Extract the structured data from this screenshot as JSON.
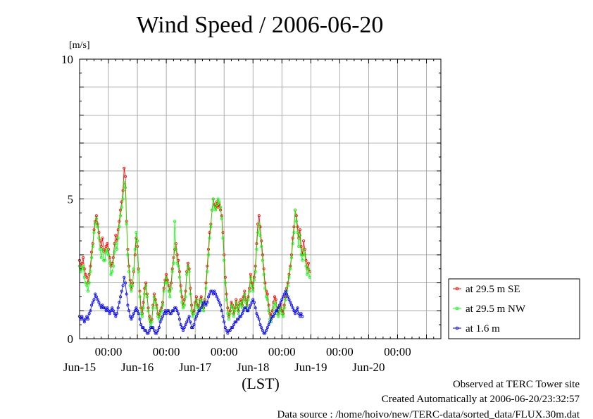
{
  "chart_data": {
    "type": "line",
    "title": "Wind Speed / 2006-06-20",
    "ylabel": "[m/s]",
    "xlabel": "(LST)",
    "ylim": [
      0,
      10
    ],
    "xlim": [
      "2006-06-14T12:00",
      "2006-06-20T18:00"
    ],
    "y_ticks": [
      "0",
      "5",
      "10"
    ],
    "y_tick_values": [
      0,
      5,
      10
    ],
    "x_day_ticks": [
      "00:00",
      "00:00",
      "00:00",
      "00:00",
      "00:00",
      "00:00"
    ],
    "x_day_tick_values": [
      "2006-06-15T00:00",
      "2006-06-16T00:00",
      "2006-06-17T00:00",
      "2006-06-18T00:00",
      "2006-06-19T00:00",
      "2006-06-20T00:00"
    ],
    "x_date_labels": [
      "Jun-15",
      "Jun-16",
      "Jun-17",
      "Jun-18",
      "Jun-19",
      "Jun-20"
    ],
    "x_date_label_values": [
      "2006-06-14T12:00",
      "2006-06-15T12:00",
      "2006-06-16T12:00",
      "2006-06-17T12:00",
      "2006-06-18T12:00",
      "2006-06-19T12:00"
    ],
    "grid": true,
    "legend_position": "right",
    "x_interval_minutes": 30,
    "series": [
      {
        "name": "at 29.5 m SE",
        "color": "#ff0000",
        "start": "2006-06-14T12:00",
        "values": [
          2.8,
          2.6,
          2.7,
          2.9,
          2.5,
          2.3,
          2.2,
          2.0,
          2.3,
          2.6,
          3.1,
          3.4,
          3.9,
          4.2,
          4.4,
          4.1,
          3.8,
          3.5,
          3.3,
          3.6,
          3.2,
          3.1,
          3.3,
          3.4,
          3.2,
          2.9,
          2.6,
          2.7,
          2.9,
          3.4,
          3.7,
          3.5,
          3.9,
          4.2,
          4.6,
          4.9,
          5.3,
          6.1,
          5.8,
          4.2,
          3.2,
          2.6,
          2.1,
          1.8,
          2.0,
          2.4,
          3.0,
          3.6,
          3.3,
          2.5,
          1.7,
          1.1,
          0.9,
          1.3,
          1.8,
          2.0,
          1.6,
          1.1,
          0.8,
          0.6,
          0.7,
          1.2,
          1.6,
          1.4,
          1.2,
          0.9,
          0.8,
          1.0,
          1.1,
          1.3,
          1.8,
          2.1,
          2.3,
          2.1,
          1.9,
          1.7,
          2.0,
          2.5,
          2.9,
          3.2,
          3.4,
          3.0,
          2.8,
          2.4,
          1.9,
          1.5,
          1.2,
          1.4,
          1.7,
          2.4,
          2.7,
          2.5,
          1.8,
          1.2,
          0.9,
          1.0,
          1.3,
          1.5,
          1.2,
          1.1,
          1.4,
          1.5,
          1.2,
          1.1,
          1.4,
          2.0,
          2.6,
          3.2,
          3.8,
          4.1,
          4.6,
          5.0,
          4.8,
          4.7,
          4.9,
          4.7,
          4.8,
          4.6,
          4.4,
          3.8,
          3.0,
          2.2,
          1.6,
          1.1,
          0.8,
          1.0,
          1.3,
          1.2,
          0.9,
          1.1,
          1.4,
          1.2,
          1.0,
          1.3,
          1.4,
          1.2,
          1.5,
          1.7,
          1.4,
          1.2,
          1.5,
          1.8,
          2.3,
          2.0,
          1.8,
          2.2,
          2.6,
          3.4,
          4.1,
          4.4,
          4.0,
          3.5,
          3.0,
          2.5,
          2.0,
          1.7,
          1.6,
          1.2,
          0.9,
          0.8,
          1.0,
          1.3,
          1.5,
          1.4,
          1.1,
          0.9,
          1.1,
          1.2,
          1.0,
          0.9,
          1.2,
          1.5,
          1.8,
          2.0,
          2.3,
          2.6,
          3.0,
          3.6,
          4.0,
          4.6,
          4.4,
          4.0,
          3.6,
          3.9,
          3.3,
          3.0,
          3.5,
          3.2,
          2.8,
          2.5,
          2.7,
          2.4
        ]
      },
      {
        "name": "at 29.5 m NW",
        "color": "#00ff00",
        "start": "2006-06-14T12:00",
        "values": [
          2.6,
          2.4,
          2.5,
          2.6,
          2.2,
          2.0,
          1.9,
          1.7,
          2.0,
          2.4,
          2.9,
          3.3,
          3.8,
          4.1,
          4.3,
          4.0,
          3.6,
          3.2,
          2.9,
          3.2,
          2.8,
          2.8,
          3.1,
          3.2,
          3.0,
          2.7,
          2.3,
          2.4,
          2.6,
          3.1,
          3.4,
          3.2,
          3.6,
          4.0,
          4.4,
          4.7,
          5.0,
          5.6,
          5.4,
          4.1,
          3.0,
          2.4,
          1.9,
          1.7,
          1.9,
          2.5,
          3.2,
          3.8,
          3.5,
          2.4,
          1.5,
          0.9,
          0.8,
          1.1,
          1.6,
          1.9,
          1.5,
          1.0,
          0.7,
          0.5,
          0.6,
          1.1,
          1.5,
          1.3,
          1.1,
          0.8,
          0.7,
          0.9,
          1.0,
          1.2,
          1.7,
          2.0,
          2.2,
          2.0,
          1.7,
          1.5,
          1.8,
          2.4,
          2.7,
          4.2,
          3.2,
          2.7,
          2.6,
          2.2,
          1.7,
          1.3,
          1.1,
          1.2,
          1.5,
          2.3,
          2.6,
          2.4,
          1.6,
          1.0,
          0.8,
          0.9,
          1.2,
          1.4,
          1.1,
          1.0,
          1.3,
          1.4,
          1.1,
          1.0,
          1.3,
          1.8,
          2.4,
          3.0,
          3.6,
          4.0,
          4.6,
          5.0,
          4.7,
          4.6,
          4.8,
          5.0,
          4.9,
          4.7,
          4.3,
          3.6,
          2.8,
          2.0,
          1.4,
          0.9,
          0.7,
          0.9,
          1.2,
          1.1,
          0.8,
          1.0,
          1.3,
          1.1,
          0.9,
          1.2,
          1.3,
          1.1,
          1.4,
          1.6,
          1.3,
          1.1,
          1.4,
          1.7,
          2.2,
          1.9,
          1.7,
          2.1,
          2.4,
          3.2,
          3.8,
          4.1,
          3.7,
          3.3,
          2.8,
          2.3,
          1.8,
          1.5,
          1.4,
          1.0,
          0.7,
          0.6,
          0.8,
          1.1,
          1.3,
          1.2,
          0.9,
          0.8,
          1.0,
          1.1,
          0.9,
          0.8,
          1.1,
          1.4,
          1.7,
          1.9,
          2.2,
          2.5,
          2.9,
          3.4,
          3.8,
          4.6,
          4.2,
          3.8,
          3.3,
          3.7,
          3.0,
          2.8,
          3.2,
          3.0,
          2.6,
          2.3,
          2.5,
          2.2
        ]
      },
      {
        "name": "at 1.6 m",
        "color": "#0000ff",
        "start": "2006-06-14T12:00",
        "values": [
          0.8,
          0.7,
          0.8,
          0.7,
          0.6,
          0.7,
          0.8,
          0.7,
          0.9,
          1.0,
          1.2,
          1.3,
          1.4,
          1.6,
          1.5,
          1.4,
          1.3,
          1.2,
          1.1,
          1.2,
          1.1,
          1.1,
          1.0,
          1.1,
          1.0,
          0.9,
          1.0,
          1.1,
          1.0,
          0.9,
          0.8,
          0.9,
          1.1,
          1.3,
          1.5,
          1.7,
          1.9,
          2.2,
          2.0,
          1.6,
          1.2,
          1.0,
          0.8,
          0.7,
          0.8,
          0.9,
          1.0,
          1.1,
          1.0,
          0.9,
          0.7,
          0.5,
          0.4,
          0.4,
          0.3,
          0.3,
          0.2,
          0.2,
          0.3,
          0.4,
          0.4,
          0.4,
          0.3,
          0.2,
          0.2,
          0.3,
          0.4,
          0.6,
          0.7,
          0.8,
          0.9,
          1.0,
          0.9,
          1.0,
          1.0,
          0.9,
          0.9,
          1.0,
          1.0,
          1.1,
          1.1,
          1.0,
          0.9,
          0.7,
          0.5,
          0.4,
          0.3,
          0.4,
          0.5,
          0.6,
          0.7,
          0.8,
          0.6,
          0.4,
          0.4,
          0.5,
          0.7,
          0.8,
          0.9,
          1.0,
          1.0,
          1.1,
          1.2,
          1.3,
          1.3,
          1.2,
          1.3,
          1.5,
          1.6,
          1.7,
          1.7,
          1.6,
          1.7,
          1.6,
          1.5,
          1.4,
          1.3,
          1.2,
          1.0,
          0.8,
          0.6,
          0.4,
          0.3,
          0.2,
          0.3,
          0.3,
          0.4,
          0.4,
          0.5,
          0.6,
          0.6,
          0.7,
          0.7,
          0.8,
          0.8,
          0.9,
          1.0,
          1.1,
          1.1,
          1.0,
          1.0,
          1.1,
          1.2,
          1.3,
          1.4,
          1.3,
          1.1,
          0.9,
          0.8,
          0.7,
          0.5,
          0.4,
          0.3,
          0.2,
          0.2,
          0.3,
          0.4,
          0.5,
          0.6,
          0.7,
          0.8,
          0.8,
          0.9,
          1.0,
          1.0,
          1.1,
          1.2,
          1.3,
          1.4,
          1.5,
          1.6,
          1.7,
          1.6,
          1.5,
          1.4,
          1.3,
          1.2,
          1.1,
          1.0,
          0.9,
          1.0,
          1.1,
          0.9,
          0.8,
          0.9,
          0.8
        ]
      }
    ]
  },
  "footer": {
    "line1": "Observed at TERC Tower site",
    "line2": "Created Automatically at 2006-06-20/23:32:57",
    "line3": "Data source : /home/hoivo/new/TERC-data/sorted_data/FLUX.30m.dat"
  }
}
